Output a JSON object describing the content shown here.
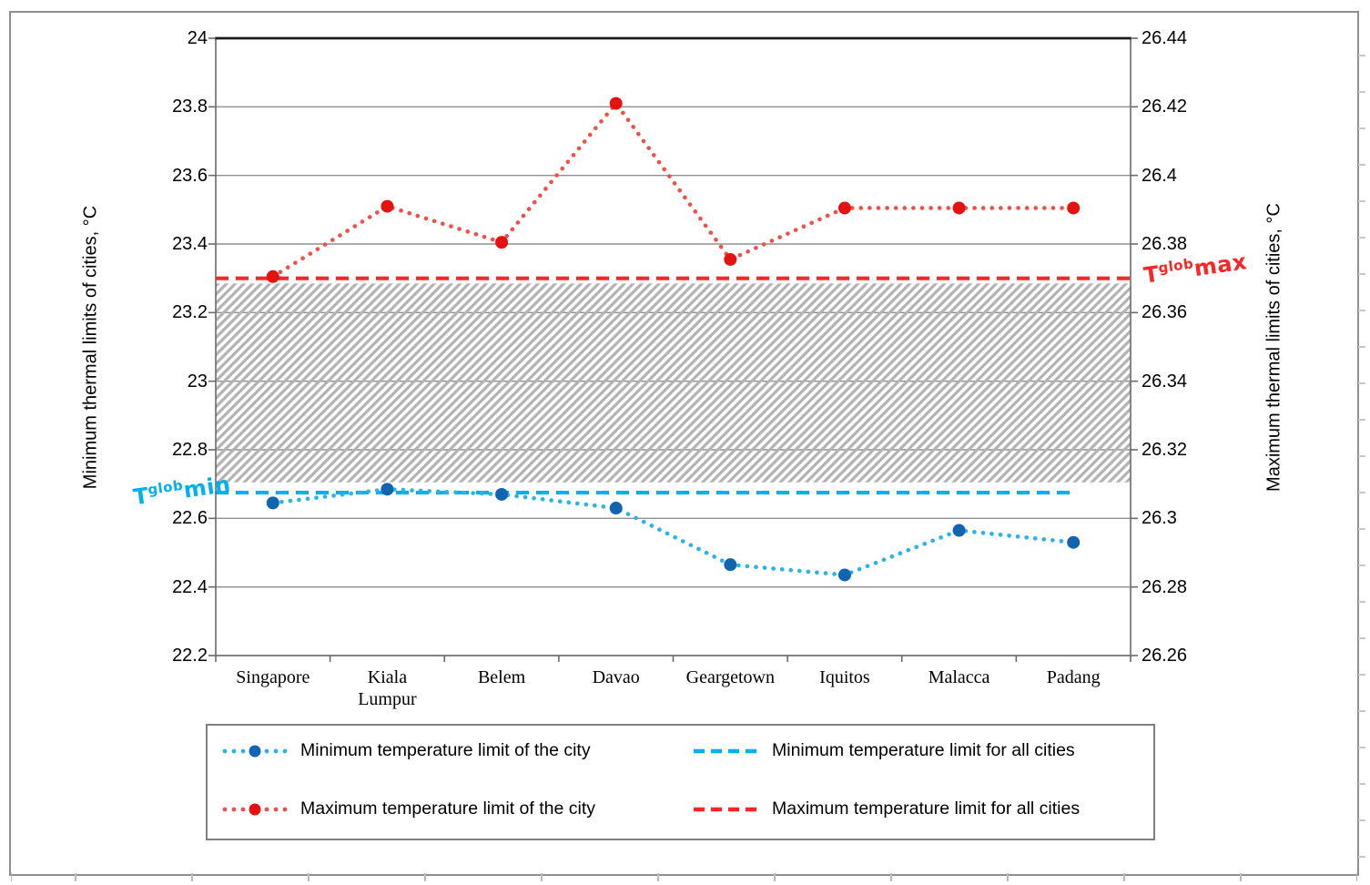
{
  "colors": {
    "min_city_line": "#2AB3E8",
    "min_city_marker": "#1165B0",
    "max_city_line": "#F0504A",
    "max_city_marker": "#E41210",
    "min_all_cities_line": "#00B0F0",
    "max_all_cities_line": "#FA2626",
    "gridline": "#909090",
    "hatch_band": "#B3B3B3"
  },
  "chart_data": {
    "type": "line",
    "categories": [
      "Singapore",
      "Kiala\nLumpur",
      "Belem",
      "Davao",
      "Geargetown",
      "Iquitos",
      "Malacca",
      "Padang"
    ],
    "series": [
      {
        "name": "Minimum temperature limit of the city",
        "style": "dotted-with-markers",
        "color_line": "#2AB3E8",
        "color_marker": "#1165B0",
        "values": [
          22.645,
          22.685,
          22.67,
          22.63,
          22.465,
          22.435,
          22.565,
          22.53
        ]
      },
      {
        "name": "Maximum temperature limit of the city",
        "style": "dotted-with-markers",
        "color_line": "#F0504A",
        "color_marker": "#E41210",
        "values": [
          23.305,
          23.51,
          23.405,
          23.81,
          23.355,
          23.505,
          23.505,
          23.505
        ]
      },
      {
        "name": "Minimum temperature limit for all cities",
        "style": "dashed-constant",
        "color_line": "#00B0F0",
        "value": 22.675,
        "extent": "categories"
      },
      {
        "name": "Maximum temperature limit for all cities",
        "style": "dashed-constant",
        "color_line": "#FA2626",
        "value": 23.3,
        "extent": "full"
      }
    ],
    "band": {
      "from": 22.705,
      "to": 23.285,
      "style": "gray-diagonal-hatch"
    },
    "left_axis": {
      "label": "Minimum thermal limits of cities, °C",
      "min": 22.2,
      "max": 24,
      "tick_step": 0.2,
      "ticks": [
        {
          "value": 24,
          "label": "24"
        },
        {
          "value": 23.8,
          "label": "23.8"
        },
        {
          "value": 23.6,
          "label": "23.6"
        },
        {
          "value": 23.4,
          "label": "23.4"
        },
        {
          "value": 23.2,
          "label": "23.2"
        },
        {
          "value": 23,
          "label": "23"
        },
        {
          "value": 22.8,
          "label": "22.8"
        },
        {
          "value": 22.6,
          "label": "22.6"
        },
        {
          "value": 22.4,
          "label": "22.4"
        },
        {
          "value": 22.2,
          "label": "22.2"
        }
      ]
    },
    "right_axis": {
      "label": "Maximum thermal limits of cities, °C",
      "min": 26.26,
      "max": 26.44,
      "tick_step": 0.02,
      "ticks": [
        {
          "value": 26.44,
          "label": "26.44"
        },
        {
          "value": 26.42,
          "label": "26.42"
        },
        {
          "value": 26.4,
          "label": "26.4"
        },
        {
          "value": 26.38,
          "label": "26.38"
        },
        {
          "value": 26.36,
          "label": "26.36"
        },
        {
          "value": 26.34,
          "label": "26.34"
        },
        {
          "value": 26.32,
          "label": "26.32"
        },
        {
          "value": 26.3,
          "label": "26.3"
        },
        {
          "value": 26.28,
          "label": "26.28"
        },
        {
          "value": 26.26,
          "label": "26.26"
        }
      ]
    },
    "grid": "horizontal",
    "legend_position": "bottom"
  },
  "legend": {
    "items": [
      {
        "label": "Minimum temperature limit of the city",
        "swatch": "blue-dotted-with-marker"
      },
      {
        "label": "Minimum temperature limit for all cities",
        "swatch": "cyan-dashed"
      },
      {
        "label": "Maximum temperature limit of the city",
        "swatch": "red-dotted-with-marker"
      },
      {
        "label": "Maximum temperature limit for all cities",
        "swatch": "red-dashed"
      }
    ]
  },
  "annotations": {
    "min": {
      "base": "T",
      "sup": "glob",
      "word": "min",
      "color": "#00B0F0"
    },
    "max": {
      "base": "T",
      "sup": "glob",
      "word": "max",
      "color": "#FA2626"
    }
  }
}
